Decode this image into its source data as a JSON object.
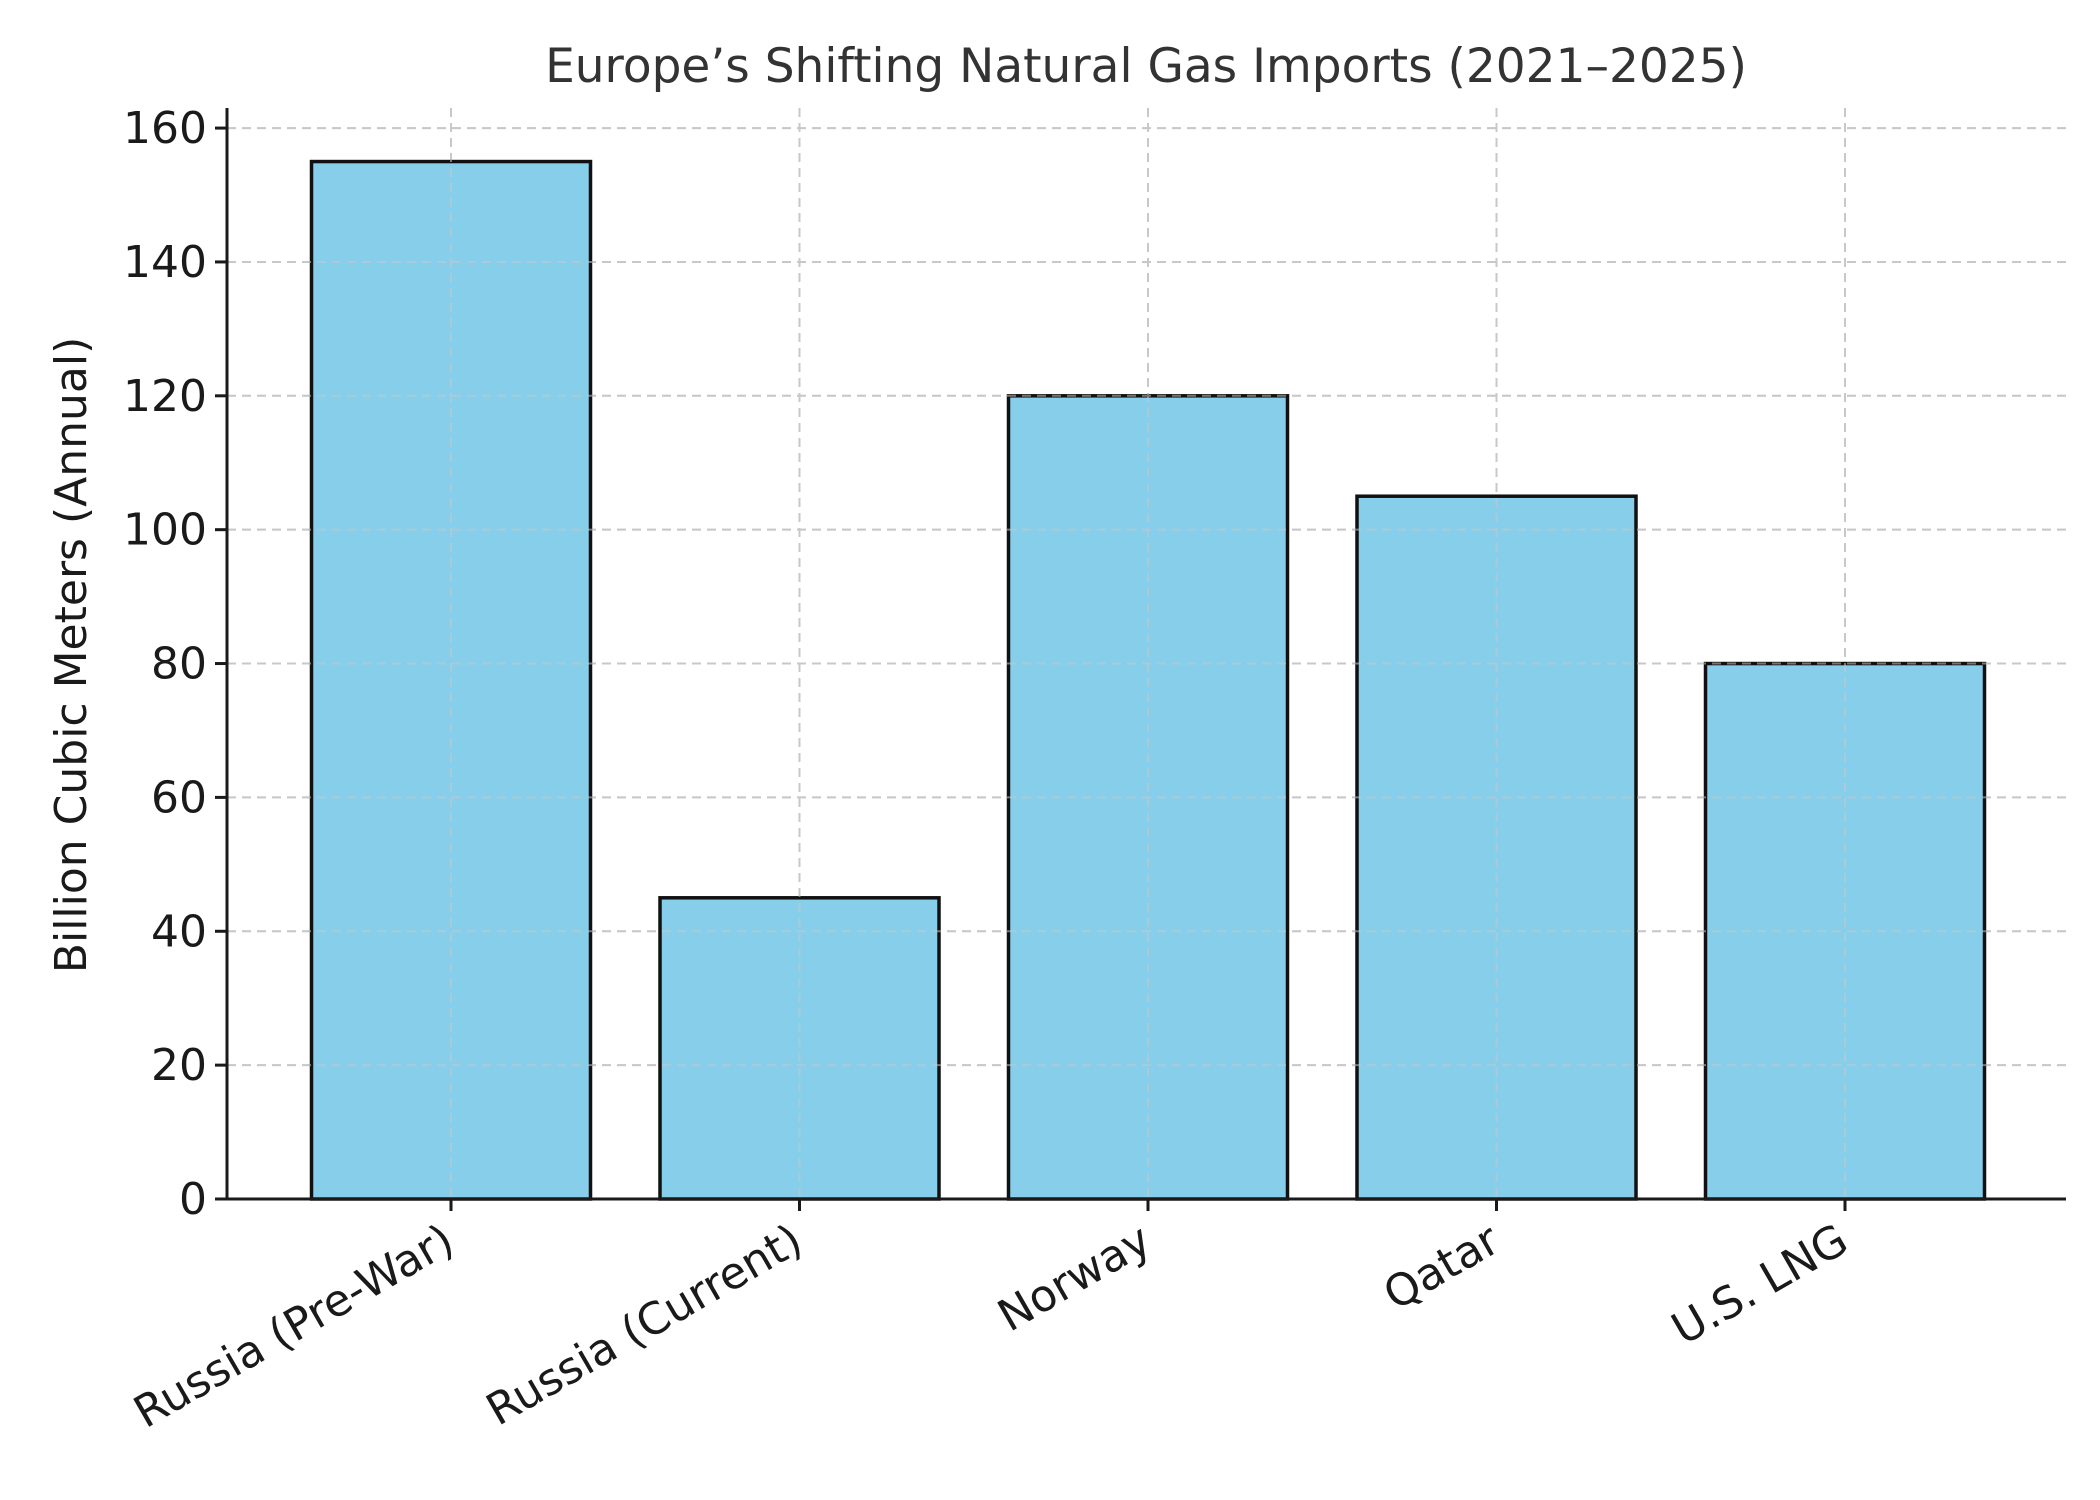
{
  "chart_data": {
    "type": "bar",
    "title": "Europe’s Shifting Natural Gas Imports (2021–2025)",
    "xlabel": "",
    "ylabel": "Billion Cubic Meters (Annual)",
    "categories": [
      "Russia (Pre-War)",
      "Russia (Current)",
      "Norway",
      "Qatar",
      "U.S. LNG"
    ],
    "values": [
      155,
      45,
      120,
      105,
      80
    ],
    "ylim": [
      0,
      163
    ],
    "yticks": [
      0,
      20,
      40,
      60,
      80,
      100,
      120,
      140,
      160
    ],
    "grid": true,
    "bar_color": "#87CEEB",
    "edge_color": "#111111"
  }
}
